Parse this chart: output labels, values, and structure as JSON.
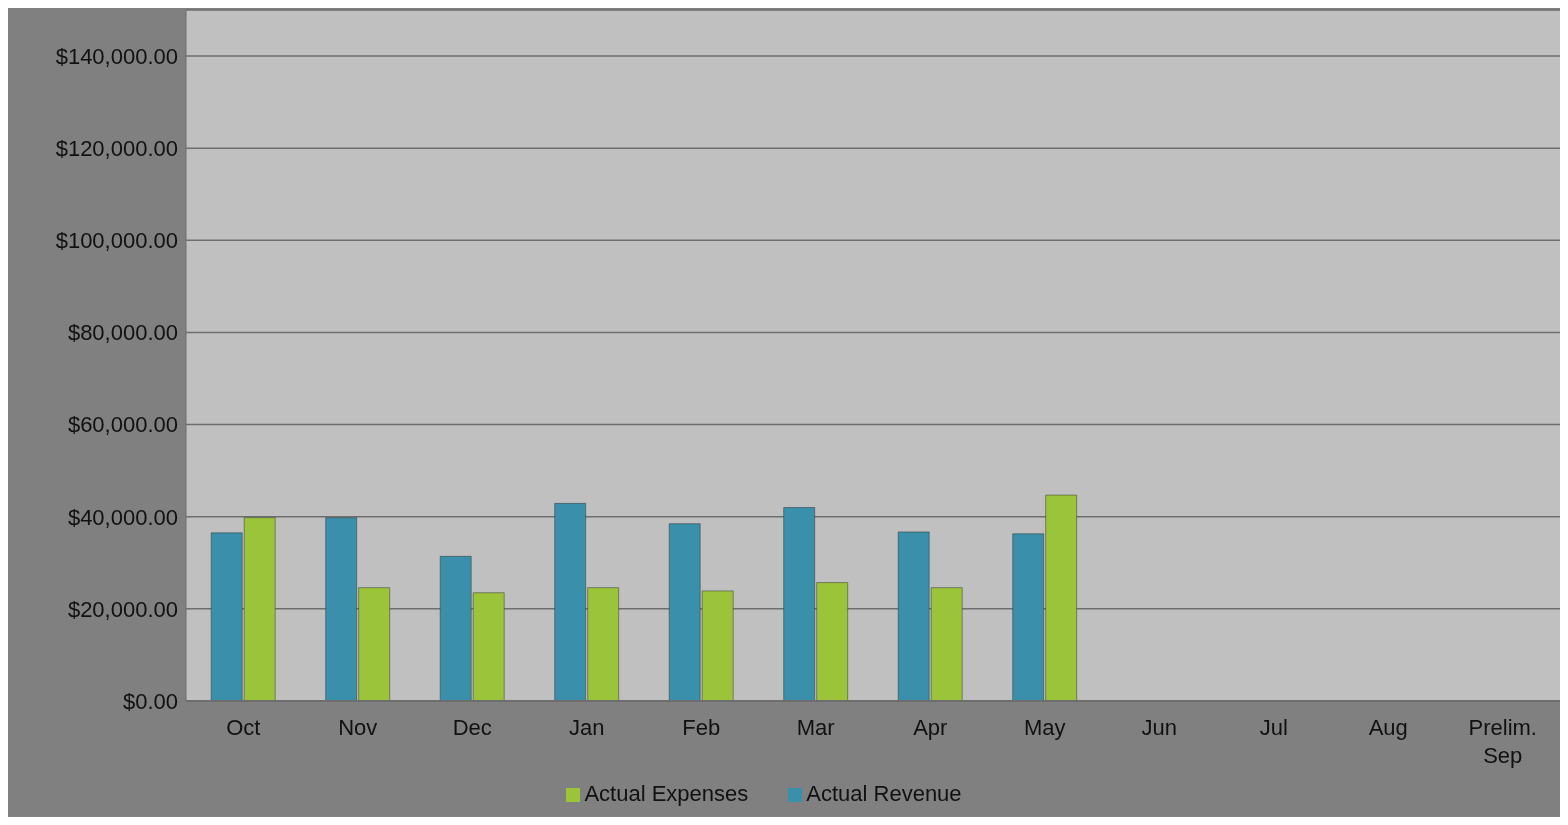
{
  "chart_data": {
    "type": "bar",
    "categories": [
      "Oct",
      "Nov",
      "Dec",
      "Jan",
      "Feb",
      "Mar",
      "Apr",
      "May",
      "Jun",
      "Jul",
      "Aug",
      "Prelim. Sep"
    ],
    "series": [
      {
        "name": "Actual Revenue",
        "color": "#3a8fab",
        "values": [
          36500,
          39800,
          31400,
          42900,
          38500,
          42000,
          36700,
          36300,
          null,
          null,
          null,
          null
        ]
      },
      {
        "name": "Actual Expenses",
        "color": "#9cc43a",
        "values": [
          39800,
          24600,
          23500,
          24600,
          23900,
          25700,
          24600,
          44700,
          null,
          null,
          null,
          null
        ]
      }
    ],
    "ylim": [
      0,
      150000
    ],
    "yticks": [
      {
        "value": 0,
        "label": "$0.00"
      },
      {
        "value": 20000,
        "label": "$20,000.00"
      },
      {
        "value": 40000,
        "label": "$40,000.00"
      },
      {
        "value": 60000,
        "label": "$60,000.00"
      },
      {
        "value": 80000,
        "label": "$80,000.00"
      },
      {
        "value": 100000,
        "label": "$100,000.00"
      },
      {
        "value": 120000,
        "label": "$120,000.00"
      },
      {
        "value": 140000,
        "label": "$140,000.00"
      }
    ],
    "grid": "y",
    "legend": "bottom"
  }
}
